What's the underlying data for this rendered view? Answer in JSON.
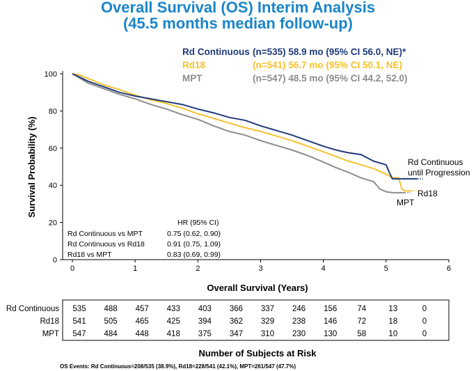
{
  "chart_data": {
    "type": "line",
    "title": "Overall Survival (OS) Interim Analysis",
    "subtitle": "(45.5 months median follow-up)",
    "xlabel": "Overall Survival (Years)",
    "ylabel": "Survival Probability (%)",
    "xlim": [
      0,
      6
    ],
    "ylim": [
      0,
      100
    ],
    "xticks": [
      "0",
      "1",
      "2",
      "3",
      "4",
      "5",
      "6"
    ],
    "yticks": [
      "0",
      "20",
      "40",
      "60",
      "80",
      "100"
    ],
    "series": [
      {
        "name": "Rd Continuous",
        "color": "#1f3a7a",
        "legend_stats": "(n=535) 58.9 mo (95% CI 56.0, NE)*",
        "end_label": [
          "Rd Continuous",
          "until Progression"
        ],
        "x": [
          0,
          0.1,
          0.25,
          0.5,
          0.75,
          1,
          1.25,
          1.5,
          1.75,
          2,
          2.25,
          2.5,
          2.75,
          3,
          3.25,
          3.5,
          3.75,
          4,
          4.2,
          4.4,
          4.6,
          4.8,
          5,
          5.05,
          5.1,
          5.2,
          5.4,
          5.5
        ],
        "y": [
          100,
          98.5,
          96,
          93,
          90,
          88,
          86.5,
          85,
          83.5,
          81,
          79,
          76.5,
          75,
          72,
          69.5,
          67,
          64,
          61,
          59,
          57.5,
          56.5,
          53,
          51,
          47,
          43.5,
          43.5,
          43.5,
          43.5
        ]
      },
      {
        "name": "Rd18",
        "color": "#f6c12c",
        "legend_stats": "(n=541) 56.7 mo (95% CI 50.1, NE)",
        "end_label": [
          "Rd18"
        ],
        "x": [
          0,
          0.1,
          0.25,
          0.5,
          0.75,
          1,
          1.25,
          1.5,
          1.75,
          2,
          2.25,
          2.5,
          2.75,
          3,
          3.25,
          3.5,
          3.75,
          4,
          4.2,
          4.4,
          4.6,
          4.8,
          5,
          5.1,
          5.2,
          5.25,
          5.3,
          5.35,
          5.4
        ],
        "y": [
          100,
          99.5,
          97.5,
          94,
          91.5,
          88.5,
          86,
          84,
          81.5,
          78.5,
          76,
          73.5,
          71,
          69,
          66.5,
          64,
          61,
          58,
          55.5,
          53,
          51,
          49,
          46,
          44,
          44,
          38,
          37,
          37,
          37
        ]
      },
      {
        "name": "MPT",
        "color": "#8c8c8c",
        "legend_stats": "(n=547) 48.5 mo (95% CI 44.2, 52.0)",
        "end_label": [
          "MPT"
        ],
        "x": [
          0,
          0.1,
          0.25,
          0.5,
          0.75,
          1,
          1.25,
          1.5,
          1.75,
          2,
          2.25,
          2.5,
          2.75,
          3,
          3.25,
          3.5,
          3.75,
          4,
          4.2,
          4.4,
          4.6,
          4.8,
          4.9,
          5,
          5.1,
          5.2,
          5.3
        ],
        "y": [
          100,
          98,
          95,
          92,
          89,
          86.5,
          83.5,
          81,
          78,
          75.5,
          72,
          69,
          67,
          64,
          61.5,
          59,
          56,
          52.5,
          49.5,
          47,
          44,
          42,
          38,
          36.5,
          36,
          36,
          36
        ]
      }
    ],
    "hr_table": {
      "header": "HR (95% CI)",
      "rows": [
        {
          "label": "Rd Continuous vs MPT",
          "value": "0.75 (0.62, 0.90)"
        },
        {
          "label": "Rd Continuous vs Rd18",
          "value": "0.91 (0.75, 1.09)"
        },
        {
          "label": "Rd18 vs MPT",
          "value": "0.83 (0.69, 0.99)"
        }
      ]
    },
    "risk_table": {
      "title": "Number of Subjects at Risk",
      "rows": [
        {
          "label": "Rd Continuous",
          "values": [
            "535",
            "488",
            "457",
            "433",
            "403",
            "366",
            "337",
            "246",
            "156",
            "74",
            "13",
            "0"
          ]
        },
        {
          "label": "Rd18",
          "values": [
            "541",
            "505",
            "465",
            "425",
            "394",
            "362",
            "329",
            "238",
            "146",
            "72",
            "18",
            "0"
          ]
        },
        {
          "label": "MPT",
          "values": [
            "547",
            "484",
            "448",
            "418",
            "375",
            "347",
            "310",
            "230",
            "130",
            "58",
            "10",
            "0"
          ]
        }
      ]
    },
    "footnote": "OS Events: Rd Continuous=208/535 (38.9%), Rd18=228/541 (42.1%), MPT=261/547 (47.7%)"
  }
}
